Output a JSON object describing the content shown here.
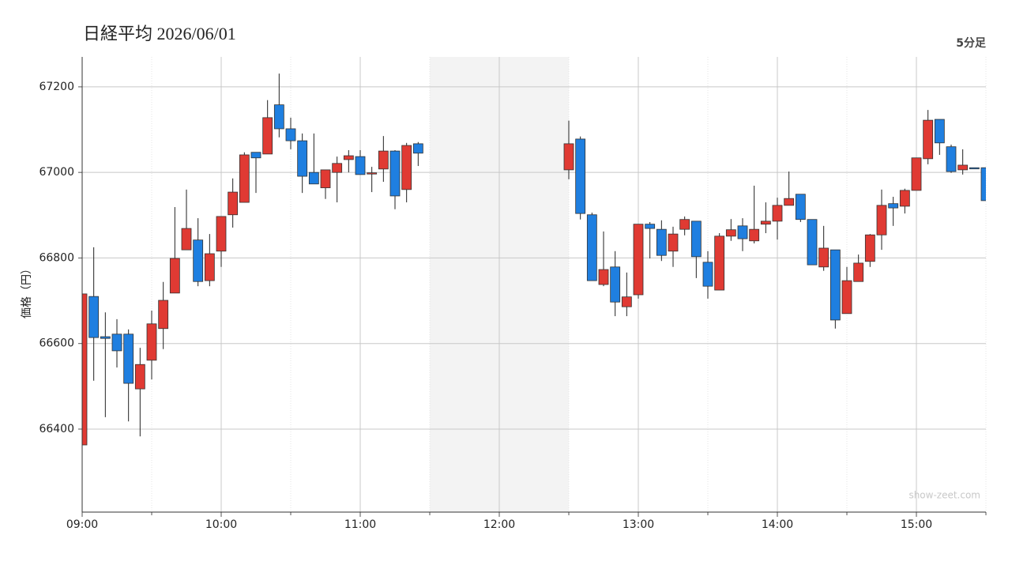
{
  "chart_data": {
    "type": "candlestick",
    "title": "日経平均 2026/06/01",
    "subtitle": "5分足",
    "y_label": "価格（円）",
    "watermark": "show-zeet.com",
    "x": [
      "09:00",
      "09:05",
      "09:10",
      "09:15",
      "09:20",
      "09:25",
      "09:30",
      "09:35",
      "09:40",
      "09:45",
      "09:50",
      "09:55",
      "10:00",
      "10:05",
      "10:10",
      "10:15",
      "10:20",
      "10:25",
      "10:30",
      "10:35",
      "10:40",
      "10:45",
      "10:50",
      "10:55",
      "11:00",
      "11:05",
      "11:10",
      "11:15",
      "11:20",
      "11:25",
      "12:30",
      "12:35",
      "12:40",
      "12:45",
      "12:50",
      "12:55",
      "13:00",
      "13:05",
      "13:10",
      "13:15",
      "13:20",
      "13:25",
      "13:30",
      "13:35",
      "13:40",
      "13:45",
      "13:50",
      "13:55",
      "14:00",
      "14:05",
      "14:10",
      "14:15",
      "14:20",
      "14:25",
      "14:30",
      "14:35",
      "14:40",
      "14:45",
      "14:50",
      "14:55",
      "15:00",
      "15:05",
      "15:10",
      "15:15",
      "15:20",
      "15:25",
      "15:30"
    ],
    "open": [
      66363,
      66710,
      66616,
      66622,
      66622,
      66494,
      66561,
      66635,
      66718,
      66819,
      66842,
      66747,
      66816,
      66901,
      66930,
      67047,
      67043,
      67158,
      67102,
      67074,
      67000,
      66964,
      67000,
      67030,
      67037,
      66997,
      67008,
      67050,
      66960,
      67067,
      67006,
      67078,
      66901,
      66738,
      66779,
      66686,
      66714,
      66879,
      66867,
      66816,
      66867,
      66886,
      66790,
      66725,
      66851,
      66875,
      66840,
      66879,
      66886,
      66923,
      66949,
      66890,
      66779,
      66819,
      66670,
      66745,
      66792,
      66854,
      66927,
      66921,
      66958,
      67032,
      67124,
      67060,
      67006,
      67011,
      67011
    ],
    "high": [
      66716,
      66825,
      66673,
      66657,
      66633,
      66590,
      66677,
      66744,
      66919,
      66960,
      66893,
      66856,
      66897,
      66986,
      67047,
      67047,
      67169,
      67231,
      67128,
      67091,
      67091,
      67006,
      67037,
      67052,
      67052,
      67013,
      67085,
      67052,
      67069,
      67071,
      67121,
      67084,
      66906,
      66862,
      66816,
      66766,
      66879,
      66884,
      66888,
      66873,
      66897,
      66886,
      66816,
      66858,
      66891,
      66893,
      66969,
      66930,
      66941,
      67002,
      66949,
      66890,
      66875,
      66819,
      66779,
      66808,
      66856,
      66960,
      66943,
      66962,
      67034,
      67146,
      67124,
      67065,
      67054,
      67011,
      67011
    ],
    "low": [
      66363,
      66513,
      66428,
      66544,
      66418,
      66383,
      66516,
      66587,
      66718,
      66819,
      66734,
      66734,
      66779,
      66871,
      66930,
      66952,
      67043,
      67082,
      67054,
      66952,
      66973,
      66938,
      66930,
      67000,
      66995,
      66954,
      66978,
      66914,
      66930,
      67015,
      66984,
      66890,
      66747,
      66734,
      66664,
      66664,
      66705,
      66799,
      66793,
      66779,
      66853,
      66753,
      66705,
      66725,
      66840,
      66816,
      66834,
      66858,
      66843,
      66923,
      66884,
      66784,
      66770,
      66635,
      66670,
      66745,
      66779,
      66819,
      66875,
      66904,
      66958,
      67019,
      67041,
      66999,
      66995,
      67011,
      66934
    ],
    "close": [
      66716,
      66614,
      66612,
      66583,
      66507,
      66551,
      66646,
      66701,
      66799,
      66869,
      66745,
      66810,
      66897,
      66954,
      67041,
      67034,
      67128,
      67102,
      67074,
      66991,
      66973,
      67006,
      67021,
      67039,
      66995,
      66999,
      67050,
      66945,
      67063,
      67045,
      67067,
      66904,
      66747,
      66773,
      66697,
      66709,
      66879,
      66869,
      66806,
      66856,
      66890,
      66803,
      66734,
      66851,
      66866,
      66845,
      66867,
      66886,
      66923,
      66939,
      66890,
      66784,
      66823,
      66655,
      66747,
      66788,
      66854,
      66923,
      66917,
      66958,
      67034,
      67122,
      67069,
      67002,
      67017,
      67011,
      66934
    ],
    "up_color": "#e03a33",
    "down_color": "#1f7fe0",
    "xlim": [
      "09:00",
      "15:30"
    ],
    "xticks": [
      "09:00",
      "10:00",
      "11:00",
      "12:00",
      "13:00",
      "14:00",
      "15:00"
    ],
    "minor_xticks": [
      "09:30",
      "10:30",
      "11:30",
      "12:30",
      "13:30",
      "14:30",
      "15:30"
    ],
    "shaded_range": [
      "11:30",
      "12:30"
    ],
    "ylim": [
      66206,
      67270
    ],
    "yticks": [
      66400,
      66600,
      66800,
      67000,
      67200
    ],
    "grid": true
  }
}
